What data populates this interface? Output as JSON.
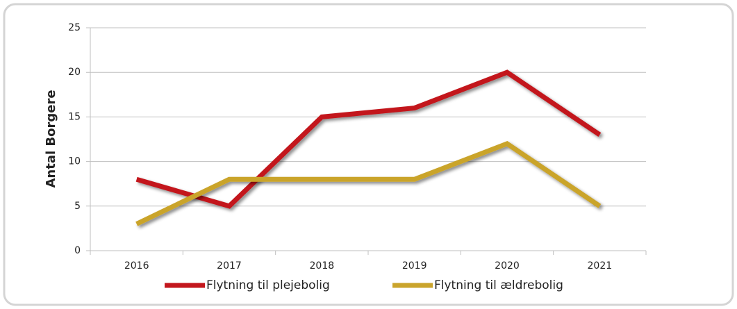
{
  "chart_data": {
    "type": "line",
    "y_label": "Antal Borgere",
    "categories": [
      "2016",
      "2017",
      "2018",
      "2019",
      "2020",
      "2021"
    ],
    "series": [
      {
        "name": "Flytning til plejebolig",
        "color": "#c3171d",
        "values": [
          8,
          5,
          15,
          16,
          20,
          13
        ]
      },
      {
        "name": "Flytning til ældrebolig",
        "color": "#caa42c",
        "values": [
          3,
          8,
          8,
          8,
          12,
          5
        ]
      }
    ],
    "ylim": [
      0,
      25
    ],
    "yticks": [
      0,
      5,
      10,
      15,
      20,
      25
    ],
    "grid": true,
    "legend": "bottom"
  }
}
